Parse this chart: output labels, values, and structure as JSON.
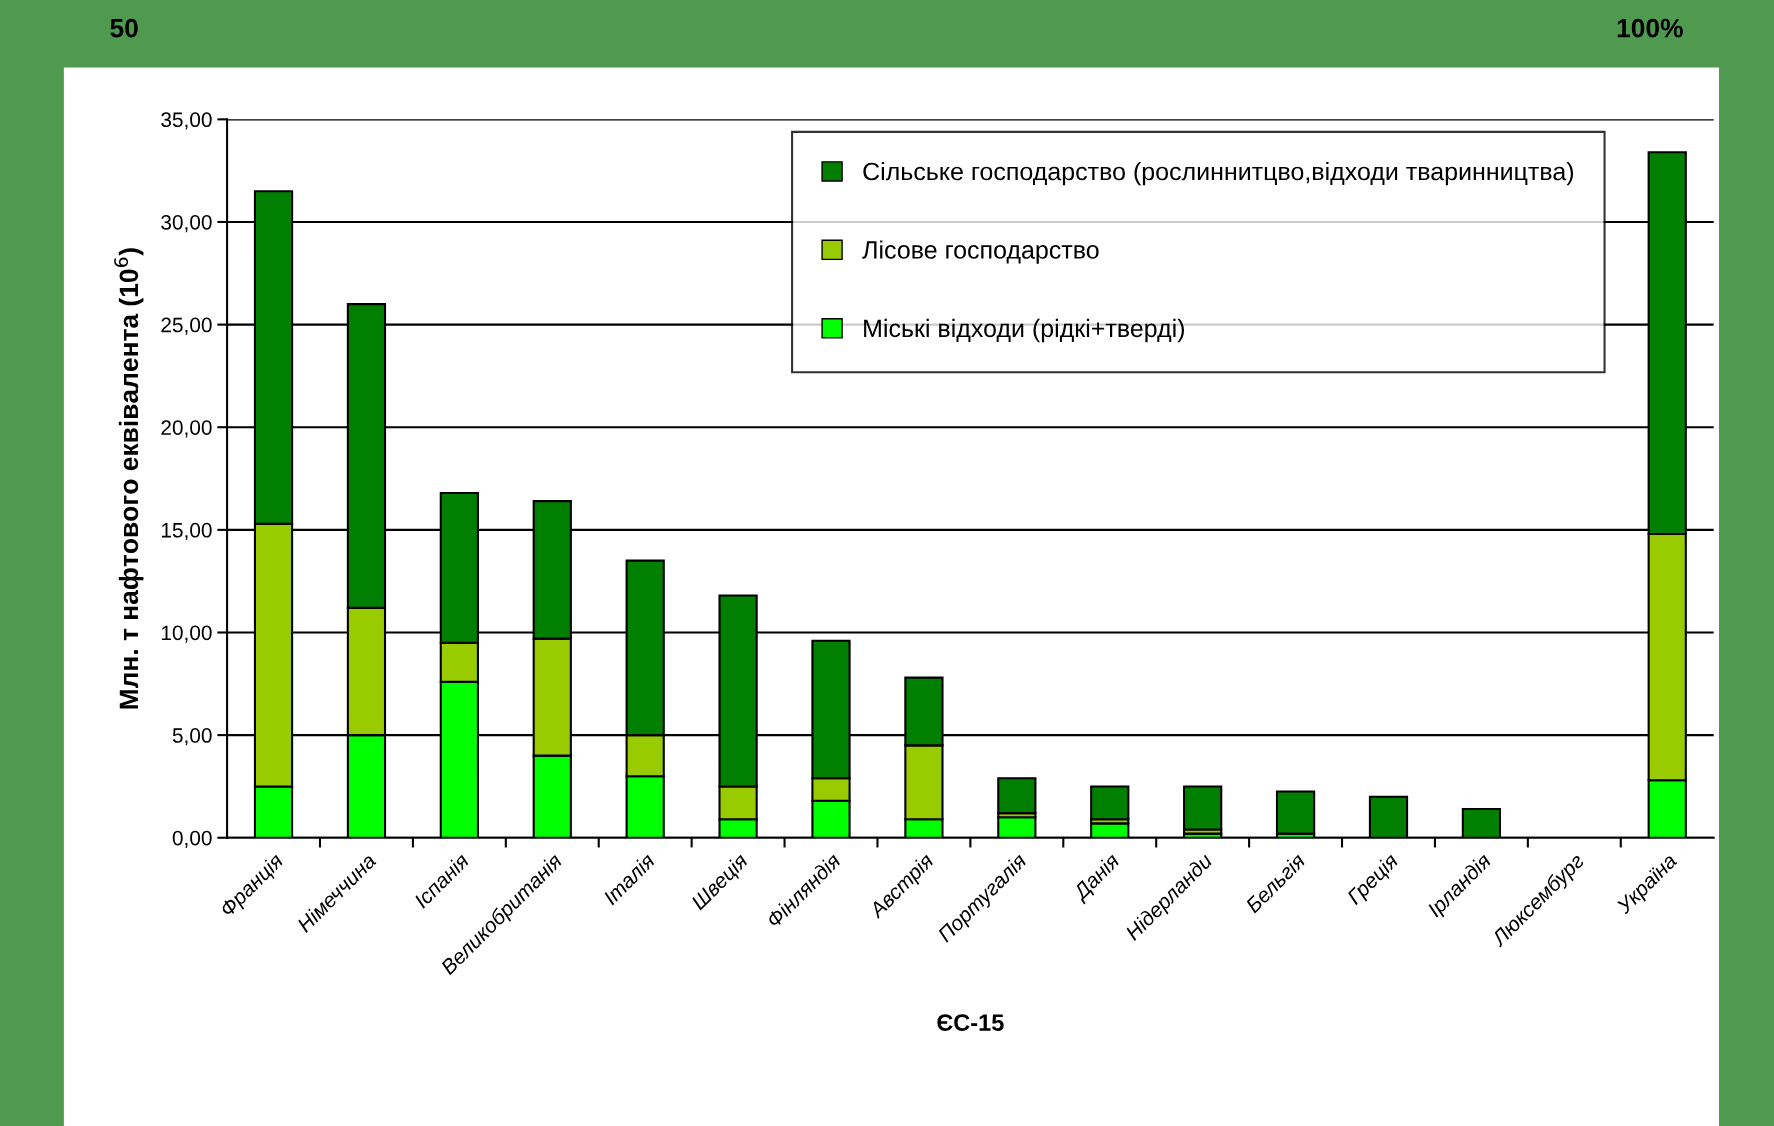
{
  "chart_data": {
    "type": "bar",
    "stacked": true,
    "xlabel": "ЄС-15",
    "ylabel": "Млн. т нафтового еквівалента (10$^{6}$)",
    "categories": [
      "Франція",
      "Німеччина",
      "Іспанія",
      "Великобританія",
      "Італія",
      "Швеція",
      "Фінляндія",
      "Австрія",
      "Португалія",
      "Данія",
      "Нідерланди",
      "Бельгія",
      "Греція",
      "Ірландія",
      "Люксембург",
      "Україна"
    ],
    "series": [
      {
        "name": "Міські відходи (рідкі+тверді)",
        "color": "#00ff00",
        "values": [
          2.5,
          5.0,
          7.6,
          4.0,
          3.0,
          0.9,
          1.8,
          0.9,
          1.0,
          0.7,
          0.2,
          0.2,
          0,
          0,
          0,
          2.8
        ]
      },
      {
        "name": "Лісове господарство",
        "color": "#99cc00",
        "values": [
          12.8,
          6.2,
          1.9,
          5.7,
          2.0,
          1.6,
          1.1,
          3.6,
          0.2,
          0.2,
          0.2,
          0,
          0,
          0,
          0,
          12.0
        ]
      },
      {
        "name": "Сільське господарство (рослиннитцво,відходи тваринництва)",
        "color": "#007f00",
        "values": [
          16.2,
          14.8,
          7.3,
          6.7,
          8.5,
          9.3,
          6.7,
          3.3,
          1.7,
          1.6,
          2.1,
          2.05,
          2.0,
          1.4,
          0,
          18.6
        ]
      }
    ],
    "ylim": [
      0,
      35
    ],
    "yticks": [
      {
        "value": 0,
        "label": "0,00"
      },
      {
        "value": 5,
        "label": "5,00"
      },
      {
        "value": 10,
        "label": "10,00"
      },
      {
        "value": 15,
        "label": "15,00"
      },
      {
        "value": 20,
        "label": "20,00"
      },
      {
        "value": 25,
        "label": "25,00"
      },
      {
        "value": 30,
        "label": "30,00"
      },
      {
        "value": 35,
        "label": "35,00"
      }
    ],
    "grid": "y",
    "legend": "top right",
    "annotations": [
      "50",
      "100%"
    ]
  }
}
